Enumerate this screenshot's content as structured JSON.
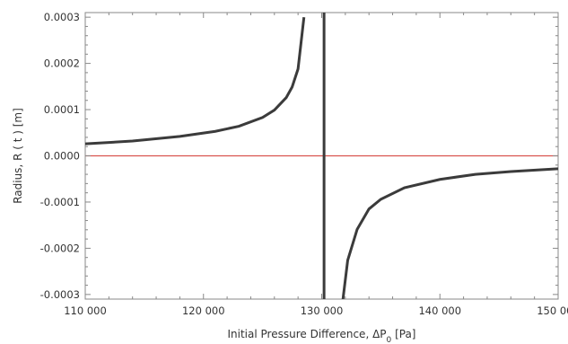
{
  "chart_data": {
    "type": "line",
    "title": "",
    "xlabel": "Initial Pressure Difference, ΔP",
    "xlabel_subscript": "0",
    "xlabel_unit": " [Pa]",
    "ylabel": "Radius, R ( t ) [m]",
    "xlim": [
      110000,
      150000
    ],
    "ylim": [
      -0.00031,
      0.00031
    ],
    "x_ticks": [
      {
        "value": 110000,
        "label": "110 000"
      },
      {
        "value": 120000,
        "label": "120 000"
      },
      {
        "value": 130000,
        "label": "130 000"
      },
      {
        "value": 140000,
        "label": "140 000"
      },
      {
        "value": 150000,
        "label": "150 000"
      }
    ],
    "y_ticks": [
      {
        "value": 0.0003,
        "label": "0.0003"
      },
      {
        "value": 0.0002,
        "label": "0.0002"
      },
      {
        "value": 0.0001,
        "label": "0.0001"
      },
      {
        "value": 0.0,
        "label": "0.0000"
      },
      {
        "value": -0.0001,
        "label": "-0.0001"
      },
      {
        "value": -0.0002,
        "label": "-0.0002"
      },
      {
        "value": -0.0003,
        "label": "-0.0003"
      }
    ],
    "series": [
      {
        "color": "#3b3b3b",
        "x": [
          110000,
          114000,
          118000,
          121000,
          123000,
          125000,
          126000,
          127000,
          127500,
          128000,
          128500
        ],
        "y": [
          2.6e-05,
          3.2e-05,
          4.2e-05,
          5.3e-05,
          6.4e-05,
          8.3e-05,
          9.9e-05,
          0.000126,
          0.000149,
          0.000188,
          0.0003
        ]
      },
      {
        "color": "#3b3b3b",
        "x": [
          130200,
          130200
        ],
        "y": [
          0.00031,
          -0.00031
        ]
      },
      {
        "color": "#3b3b3b",
        "x": [
          131800,
          132200,
          133000,
          134000,
          135000,
          137000,
          140000,
          143000,
          146000,
          150000
        ],
        "y": [
          -0.00031,
          -0.000226,
          -0.000159,
          -0.000115,
          -9.4e-05,
          -6.9e-05,
          -5.1e-05,
          -4e-05,
          -3.4e-05,
          -2.8e-05
        ]
      }
    ],
    "reference_line": {
      "y": 0.0,
      "color": "#d9544f"
    },
    "grid": false,
    "legend": "none"
  }
}
